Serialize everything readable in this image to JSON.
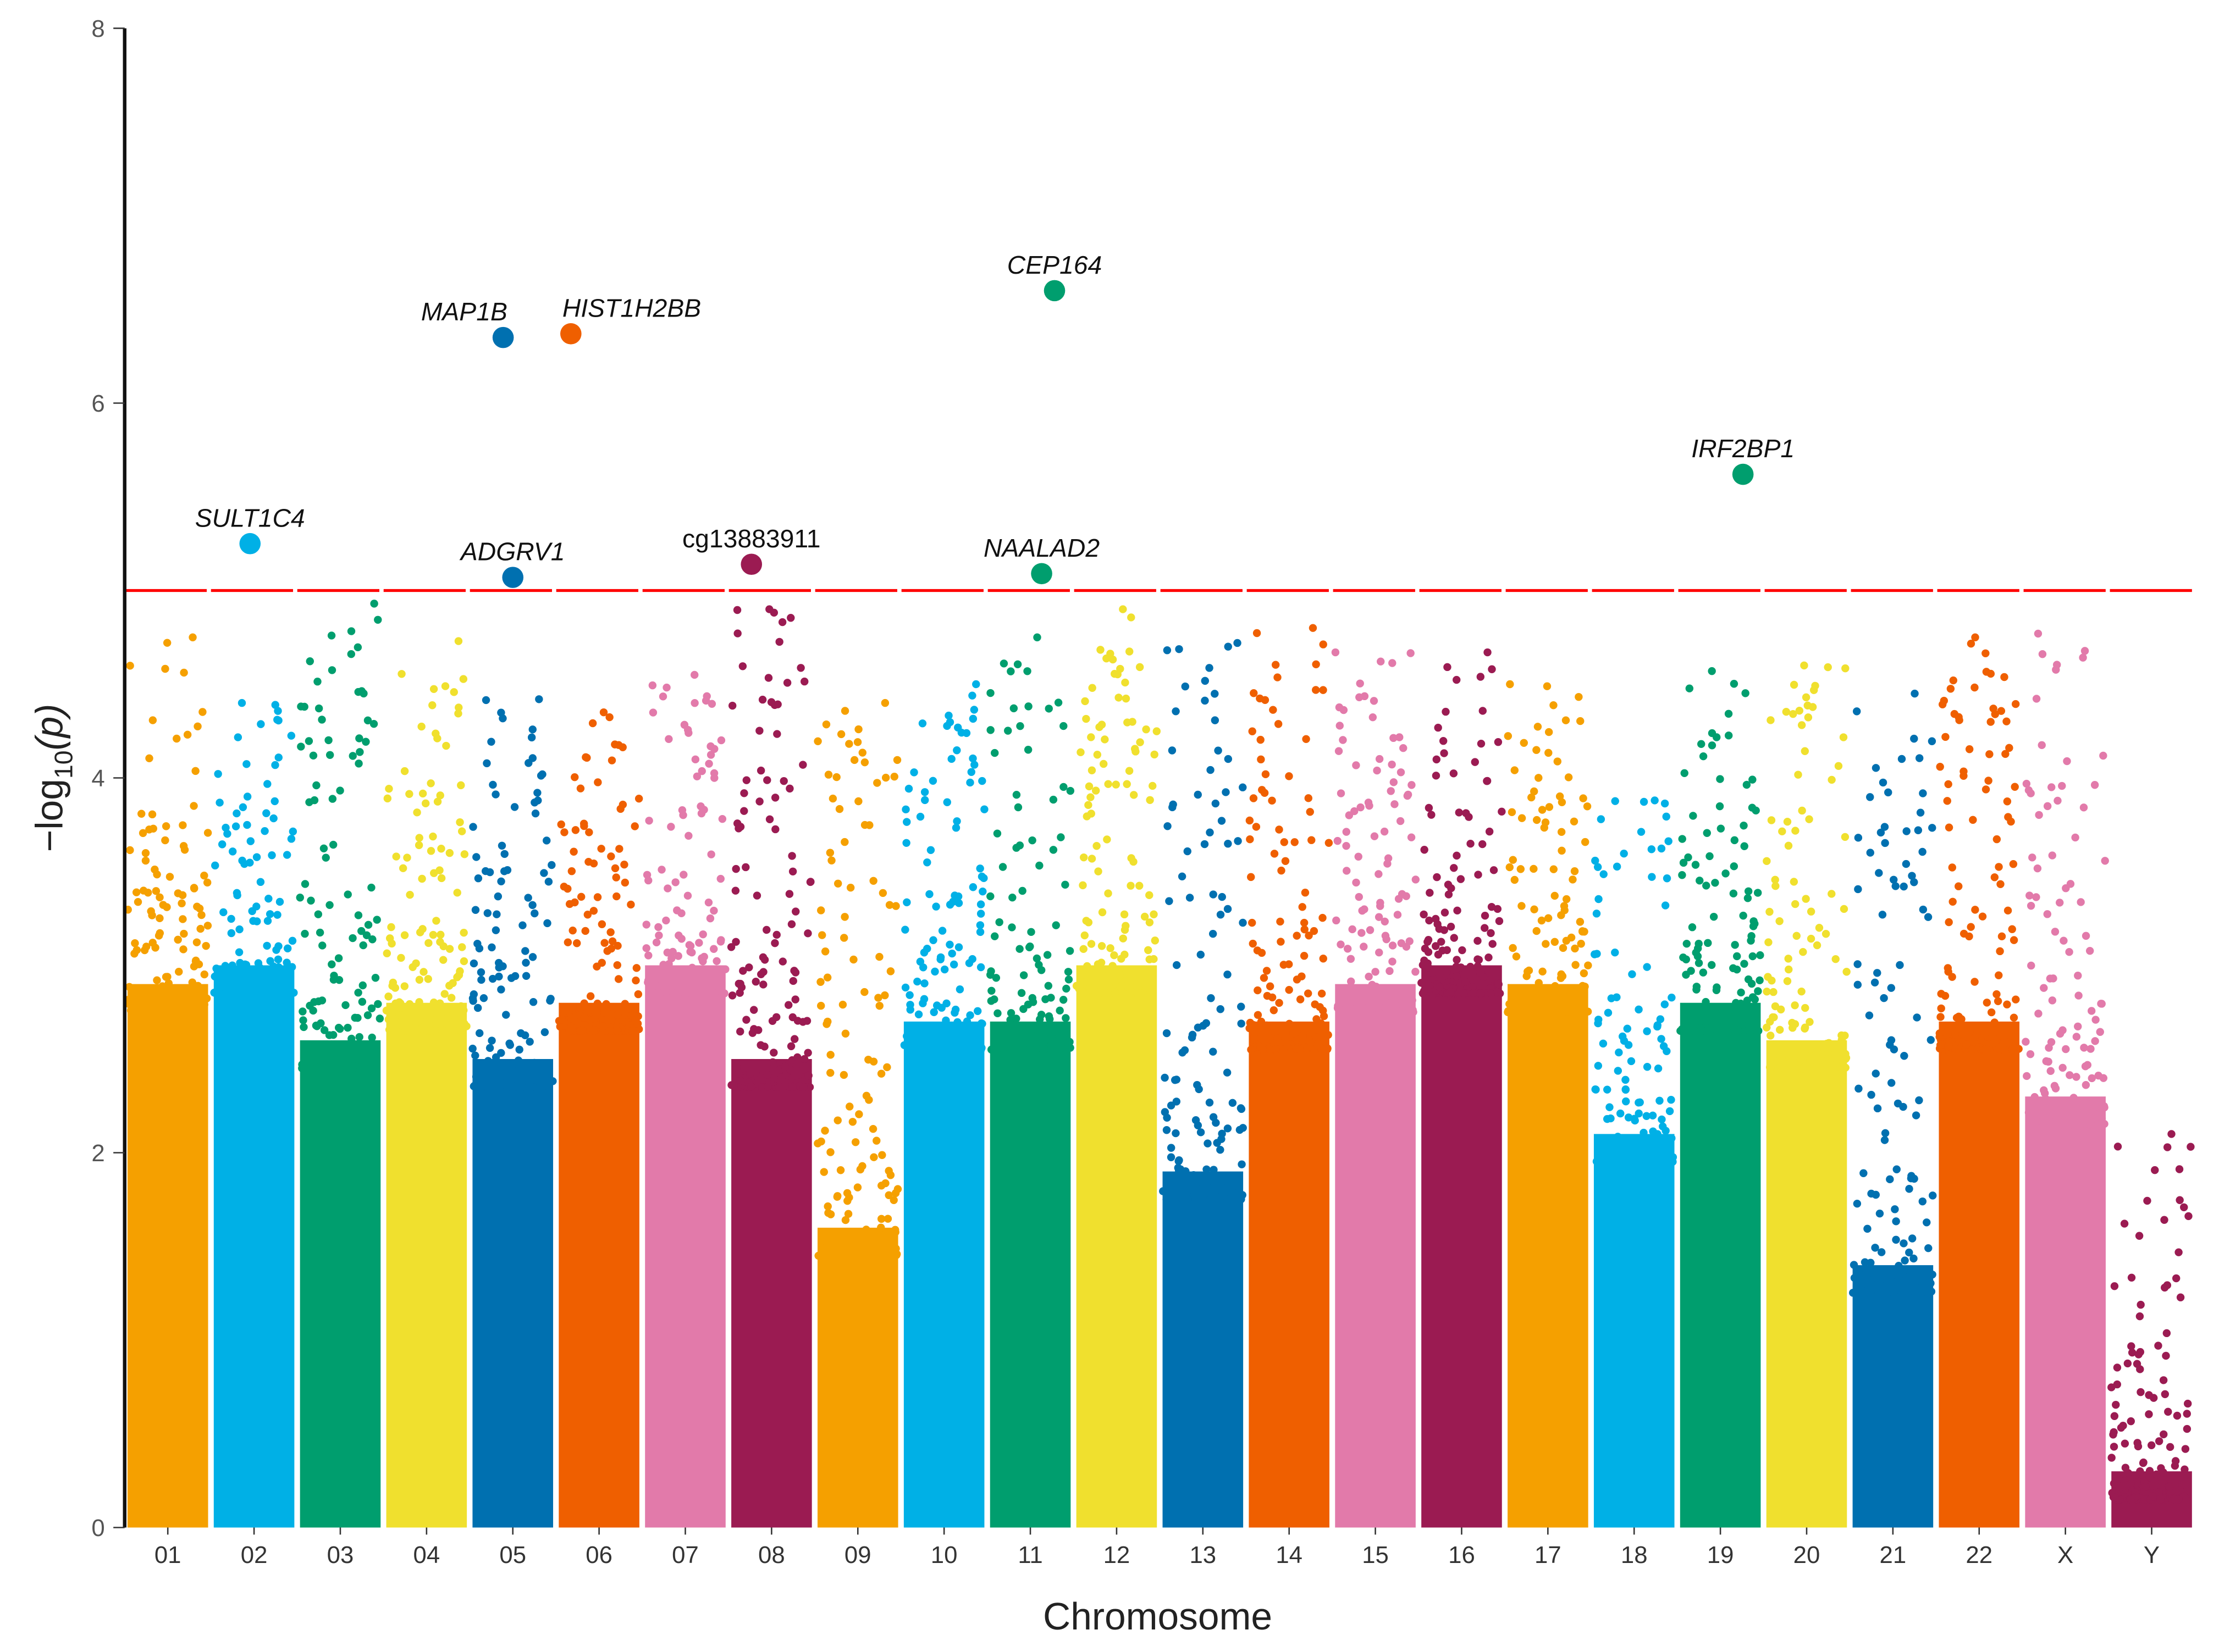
{
  "chart_data": {
    "type": "scatter",
    "subtype": "manhattan",
    "xlabel": "Chromosome",
    "ylabel_main": "−log",
    "ylabel_sub": "10",
    "ylabel_tail": "(p)",
    "ylim": [
      0,
      8
    ],
    "yticks": [
      "0",
      "2",
      "4",
      "6",
      "8"
    ],
    "yticks_values": [
      0,
      2,
      4,
      6,
      8
    ],
    "threshold": 5,
    "threshold_color": "#FF0000",
    "grid": false,
    "chromosomes": [
      {
        "label": "01",
        "color": "#F5A000",
        "dense_top": 2.9,
        "max": 4.75
      },
      {
        "label": "02",
        "color": "#00B0E6",
        "dense_top": 3.0,
        "max": 4.4
      },
      {
        "label": "03",
        "color": "#009E6E",
        "dense_top": 2.6,
        "max": 4.93
      },
      {
        "label": "04",
        "color": "#F0E02E",
        "dense_top": 2.8,
        "max": 4.73
      },
      {
        "label": "05",
        "color": "#0070B0",
        "dense_top": 2.5,
        "max": 4.42
      },
      {
        "label": "06",
        "color": "#EF5F00",
        "dense_top": 2.8,
        "max": 4.35
      },
      {
        "label": "07",
        "color": "#E27AAA",
        "dense_top": 3.0,
        "max": 4.55
      },
      {
        "label": "08",
        "color": "#9B1B52",
        "dense_top": 2.5,
        "max": 4.9
      },
      {
        "label": "09",
        "color": "#F5A000",
        "dense_top": 1.6,
        "max": 4.4
      },
      {
        "label": "10",
        "color": "#00B0E6",
        "dense_top": 2.7,
        "max": 4.5
      },
      {
        "label": "11",
        "color": "#009E6E",
        "dense_top": 2.7,
        "max": 4.75
      },
      {
        "label": "12",
        "color": "#F0E02E",
        "dense_top": 3.0,
        "max": 4.9
      },
      {
        "label": "13",
        "color": "#0070B0",
        "dense_top": 1.9,
        "max": 4.72
      },
      {
        "label": "14",
        "color": "#EF5F00",
        "dense_top": 2.7,
        "max": 4.8
      },
      {
        "label": "15",
        "color": "#E27AAA",
        "dense_top": 2.9,
        "max": 4.67
      },
      {
        "label": "16",
        "color": "#9B1B52",
        "dense_top": 3.0,
        "max": 4.67
      },
      {
        "label": "17",
        "color": "#F5A000",
        "dense_top": 2.9,
        "max": 4.5
      },
      {
        "label": "18",
        "color": "#00B0E6",
        "dense_top": 2.1,
        "max": 3.88
      },
      {
        "label": "19",
        "color": "#009E6E",
        "dense_top": 2.8,
        "max": 4.57
      },
      {
        "label": "20",
        "color": "#F0E02E",
        "dense_top": 2.6,
        "max": 4.6
      },
      {
        "label": "21",
        "color": "#0070B0",
        "dense_top": 1.4,
        "max": 4.45
      },
      {
        "label": "22",
        "color": "#EF5F00",
        "dense_top": 2.7,
        "max": 4.75
      },
      {
        "label": "X",
        "color": "#E27AAA",
        "dense_top": 2.3,
        "max": 4.77
      },
      {
        "label": "Y",
        "color": "#9B1B52",
        "dense_top": 0.3,
        "max": 2.1
      }
    ],
    "highlighted": [
      {
        "label": "SULT1C4",
        "chrom": "02",
        "pos": 0.45,
        "value": 5.25,
        "italic": true
      },
      {
        "label": "MAP1B",
        "chrom": "05",
        "pos": 0.38,
        "value": 6.35,
        "italic": true
      },
      {
        "label": "ADGRV1",
        "chrom": "05",
        "pos": 0.5,
        "value": 5.07,
        "italic": true
      },
      {
        "label": "HIST1H2BB",
        "chrom": "06",
        "pos": 0.15,
        "value": 6.37,
        "italic": true
      },
      {
        "label": "cg13883911",
        "chrom": "08",
        "pos": 0.25,
        "value": 5.14,
        "italic": false
      },
      {
        "label": "CEP164",
        "chrom": "11",
        "pos": 0.8,
        "value": 6.6,
        "italic": true
      },
      {
        "label": "NAALAD2",
        "chrom": "11",
        "pos": 0.64,
        "value": 5.09,
        "italic": true
      },
      {
        "label": "IRF2BP1",
        "chrom": "19",
        "pos": 0.78,
        "value": 5.62,
        "italic": true
      }
    ]
  }
}
